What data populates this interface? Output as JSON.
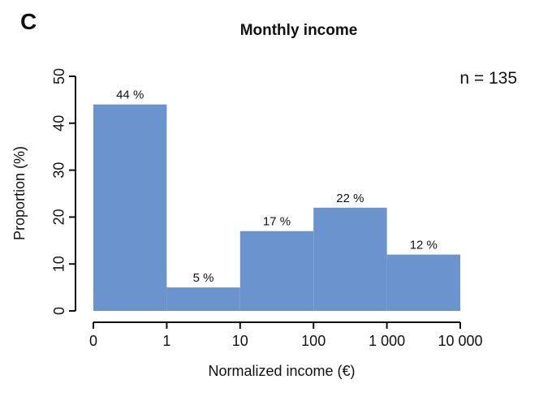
{
  "chart_data": {
    "type": "bar",
    "subtype": "histogram-log-bins",
    "panel_label": "C",
    "title": "Monthly income",
    "annotation": "n = 135",
    "xlabel": "Normalized income (€)",
    "ylabel": "Proportion (%)",
    "x_tick_labels": [
      "0",
      "1",
      "10",
      "100",
      "1 000",
      "10 000"
    ],
    "y_ticks": [
      0,
      10,
      20,
      30,
      40,
      50
    ],
    "ylim": [
      0,
      50
    ],
    "grid": "off",
    "legend": "none",
    "bins": [
      {
        "range": "0–1",
        "value": 44,
        "label": "44 %"
      },
      {
        "range": "1–10",
        "value": 5,
        "label": "5 %"
      },
      {
        "range": "10–100",
        "value": 17,
        "label": "17 %"
      },
      {
        "range": "100–1 000",
        "value": 22,
        "label": "22 %"
      },
      {
        "range": "1 000–10 000",
        "value": 12,
        "label": "12 %"
      }
    ],
    "colors": {
      "bar_fill": "#6B93CE",
      "axis": "#111111",
      "text": "#111111",
      "background": "#ffffff"
    }
  }
}
